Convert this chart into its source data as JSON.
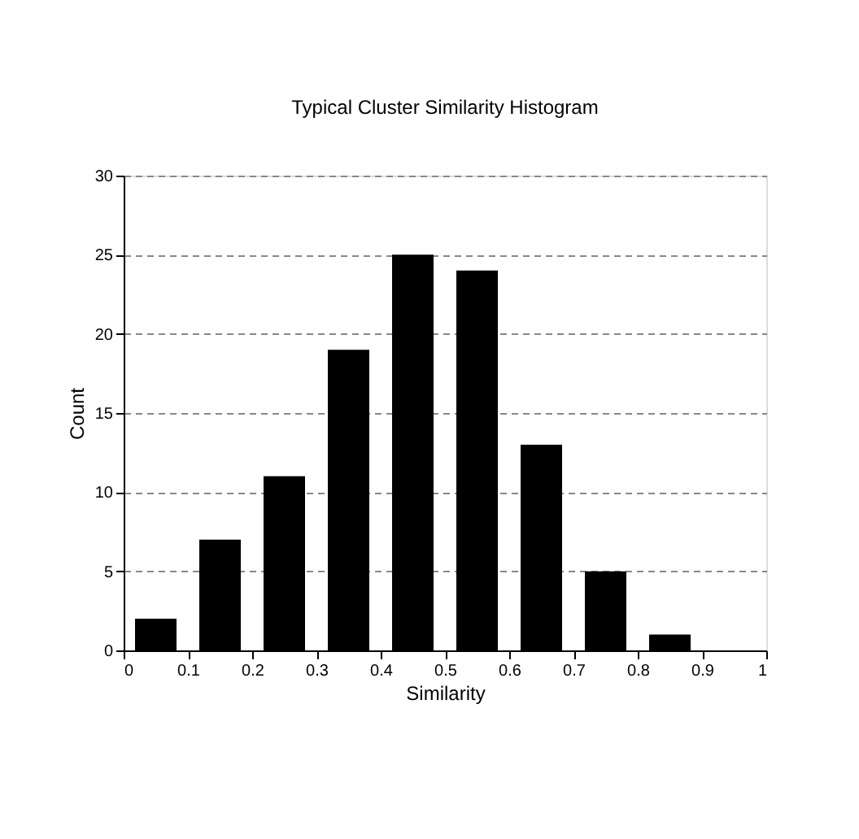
{
  "chart_data": {
    "type": "histogram",
    "title": "Typical Cluster Similarity Histogram",
    "xlabel": "Similarity",
    "ylabel": "Count",
    "bins": [
      0,
      0.1,
      0.2,
      0.3,
      0.4,
      0.5,
      0.6,
      0.7,
      0.8,
      0.9,
      1
    ],
    "values": [
      2,
      7,
      11,
      19,
      25,
      24,
      13,
      5,
      1,
      0
    ],
    "color": "#000000",
    "xlim": [
      0,
      1
    ],
    "xticks": [
      0,
      0.1,
      0.2,
      0.3,
      0.4,
      0.5,
      0.6,
      0.7,
      0.8,
      0.9,
      1
    ],
    "ylim": [
      0,
      30
    ],
    "yticks": [
      0,
      5,
      10,
      15,
      20,
      25,
      30
    ],
    "grid": "y"
  }
}
